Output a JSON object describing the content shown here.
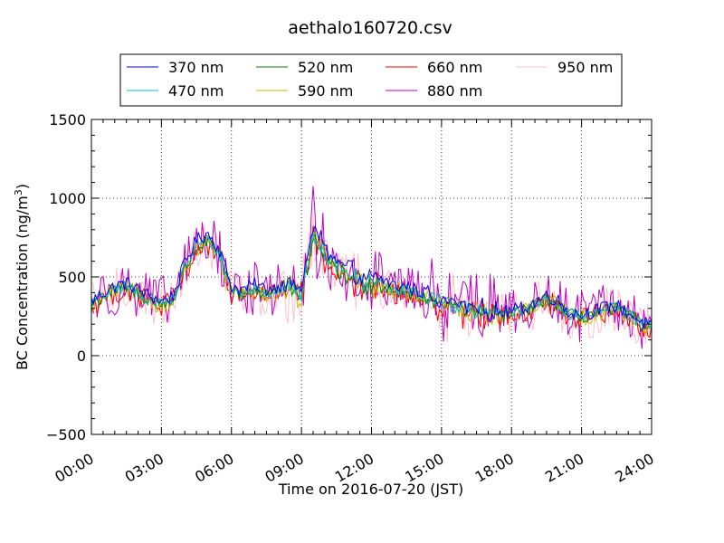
{
  "chart_data": {
    "type": "line",
    "title": "aethalo160720.csv",
    "xlabel": "Time on 2016-07-20 (JST)",
    "ylabel_main": "BC Concentration (ng/m",
    "ylabel_sup": "3",
    "ylabel_tail": ")",
    "xlim_hours": [
      0,
      24
    ],
    "ylim": [
      -500,
      1500
    ],
    "x_ticks": [
      {
        "hour": 0,
        "label": "00:00"
      },
      {
        "hour": 3,
        "label": "03:00"
      },
      {
        "hour": 6,
        "label": "06:00"
      },
      {
        "hour": 9,
        "label": "09:00"
      },
      {
        "hour": 12,
        "label": "12:00"
      },
      {
        "hour": 15,
        "label": "15:00"
      },
      {
        "hour": 18,
        "label": "18:00"
      },
      {
        "hour": 21,
        "label": "21:00"
      },
      {
        "hour": 24,
        "label": "24:00"
      }
    ],
    "y_ticks": [
      {
        "value": -500,
        "label": "−500"
      },
      {
        "value": 0,
        "label": "0"
      },
      {
        "value": 500,
        "label": "500"
      },
      {
        "value": 1000,
        "label": "1000"
      },
      {
        "value": 1500,
        "label": "1500"
      }
    ],
    "grid": "dotted",
    "legend_position": "top-center",
    "base_profile": {
      "hours": [
        0,
        0.5,
        1,
        1.5,
        2,
        2.5,
        3,
        3.5,
        4,
        4.5,
        5,
        5.5,
        6,
        6.5,
        7,
        7.5,
        8,
        8.5,
        9,
        9.5,
        10,
        10.5,
        11,
        11.5,
        12,
        12.5,
        13,
        13.5,
        14,
        14.5,
        15,
        15.5,
        16,
        16.5,
        17,
        17.5,
        18,
        18.5,
        19,
        19.5,
        20,
        20.5,
        21,
        21.5,
        22,
        22.5,
        23,
        23.5,
        24
      ],
      "values": [
        330,
        380,
        420,
        440,
        400,
        360,
        330,
        360,
        560,
        700,
        740,
        640,
        420,
        400,
        430,
        400,
        420,
        450,
        380,
        800,
        650,
        560,
        520,
        470,
        460,
        460,
        420,
        420,
        390,
        380,
        330,
        320,
        300,
        290,
        270,
        260,
        270,
        290,
        320,
        370,
        330,
        260,
        250,
        270,
        290,
        300,
        260,
        210,
        180
      ]
    },
    "series": [
      {
        "name": "370 nm",
        "color": "#0000ff",
        "scale": 1.05,
        "noise": 45
      },
      {
        "name": "470 nm",
        "color": "#00bfbf",
        "scale": 1.0,
        "noise": 40
      },
      {
        "name": "520 nm",
        "color": "#008000",
        "scale": 0.98,
        "noise": 45
      },
      {
        "name": "590 nm",
        "color": "#bfbf00",
        "scale": 0.97,
        "noise": 55
      },
      {
        "name": "660 nm",
        "color": "#ff0000",
        "scale": 0.95,
        "noise": 75
      },
      {
        "name": "880 nm",
        "color": "#bf00bf",
        "scale": 1.0,
        "noise": 170
      },
      {
        "name": "950 nm",
        "color": "#ffc0cb",
        "scale": 0.97,
        "noise": 150
      }
    ]
  }
}
